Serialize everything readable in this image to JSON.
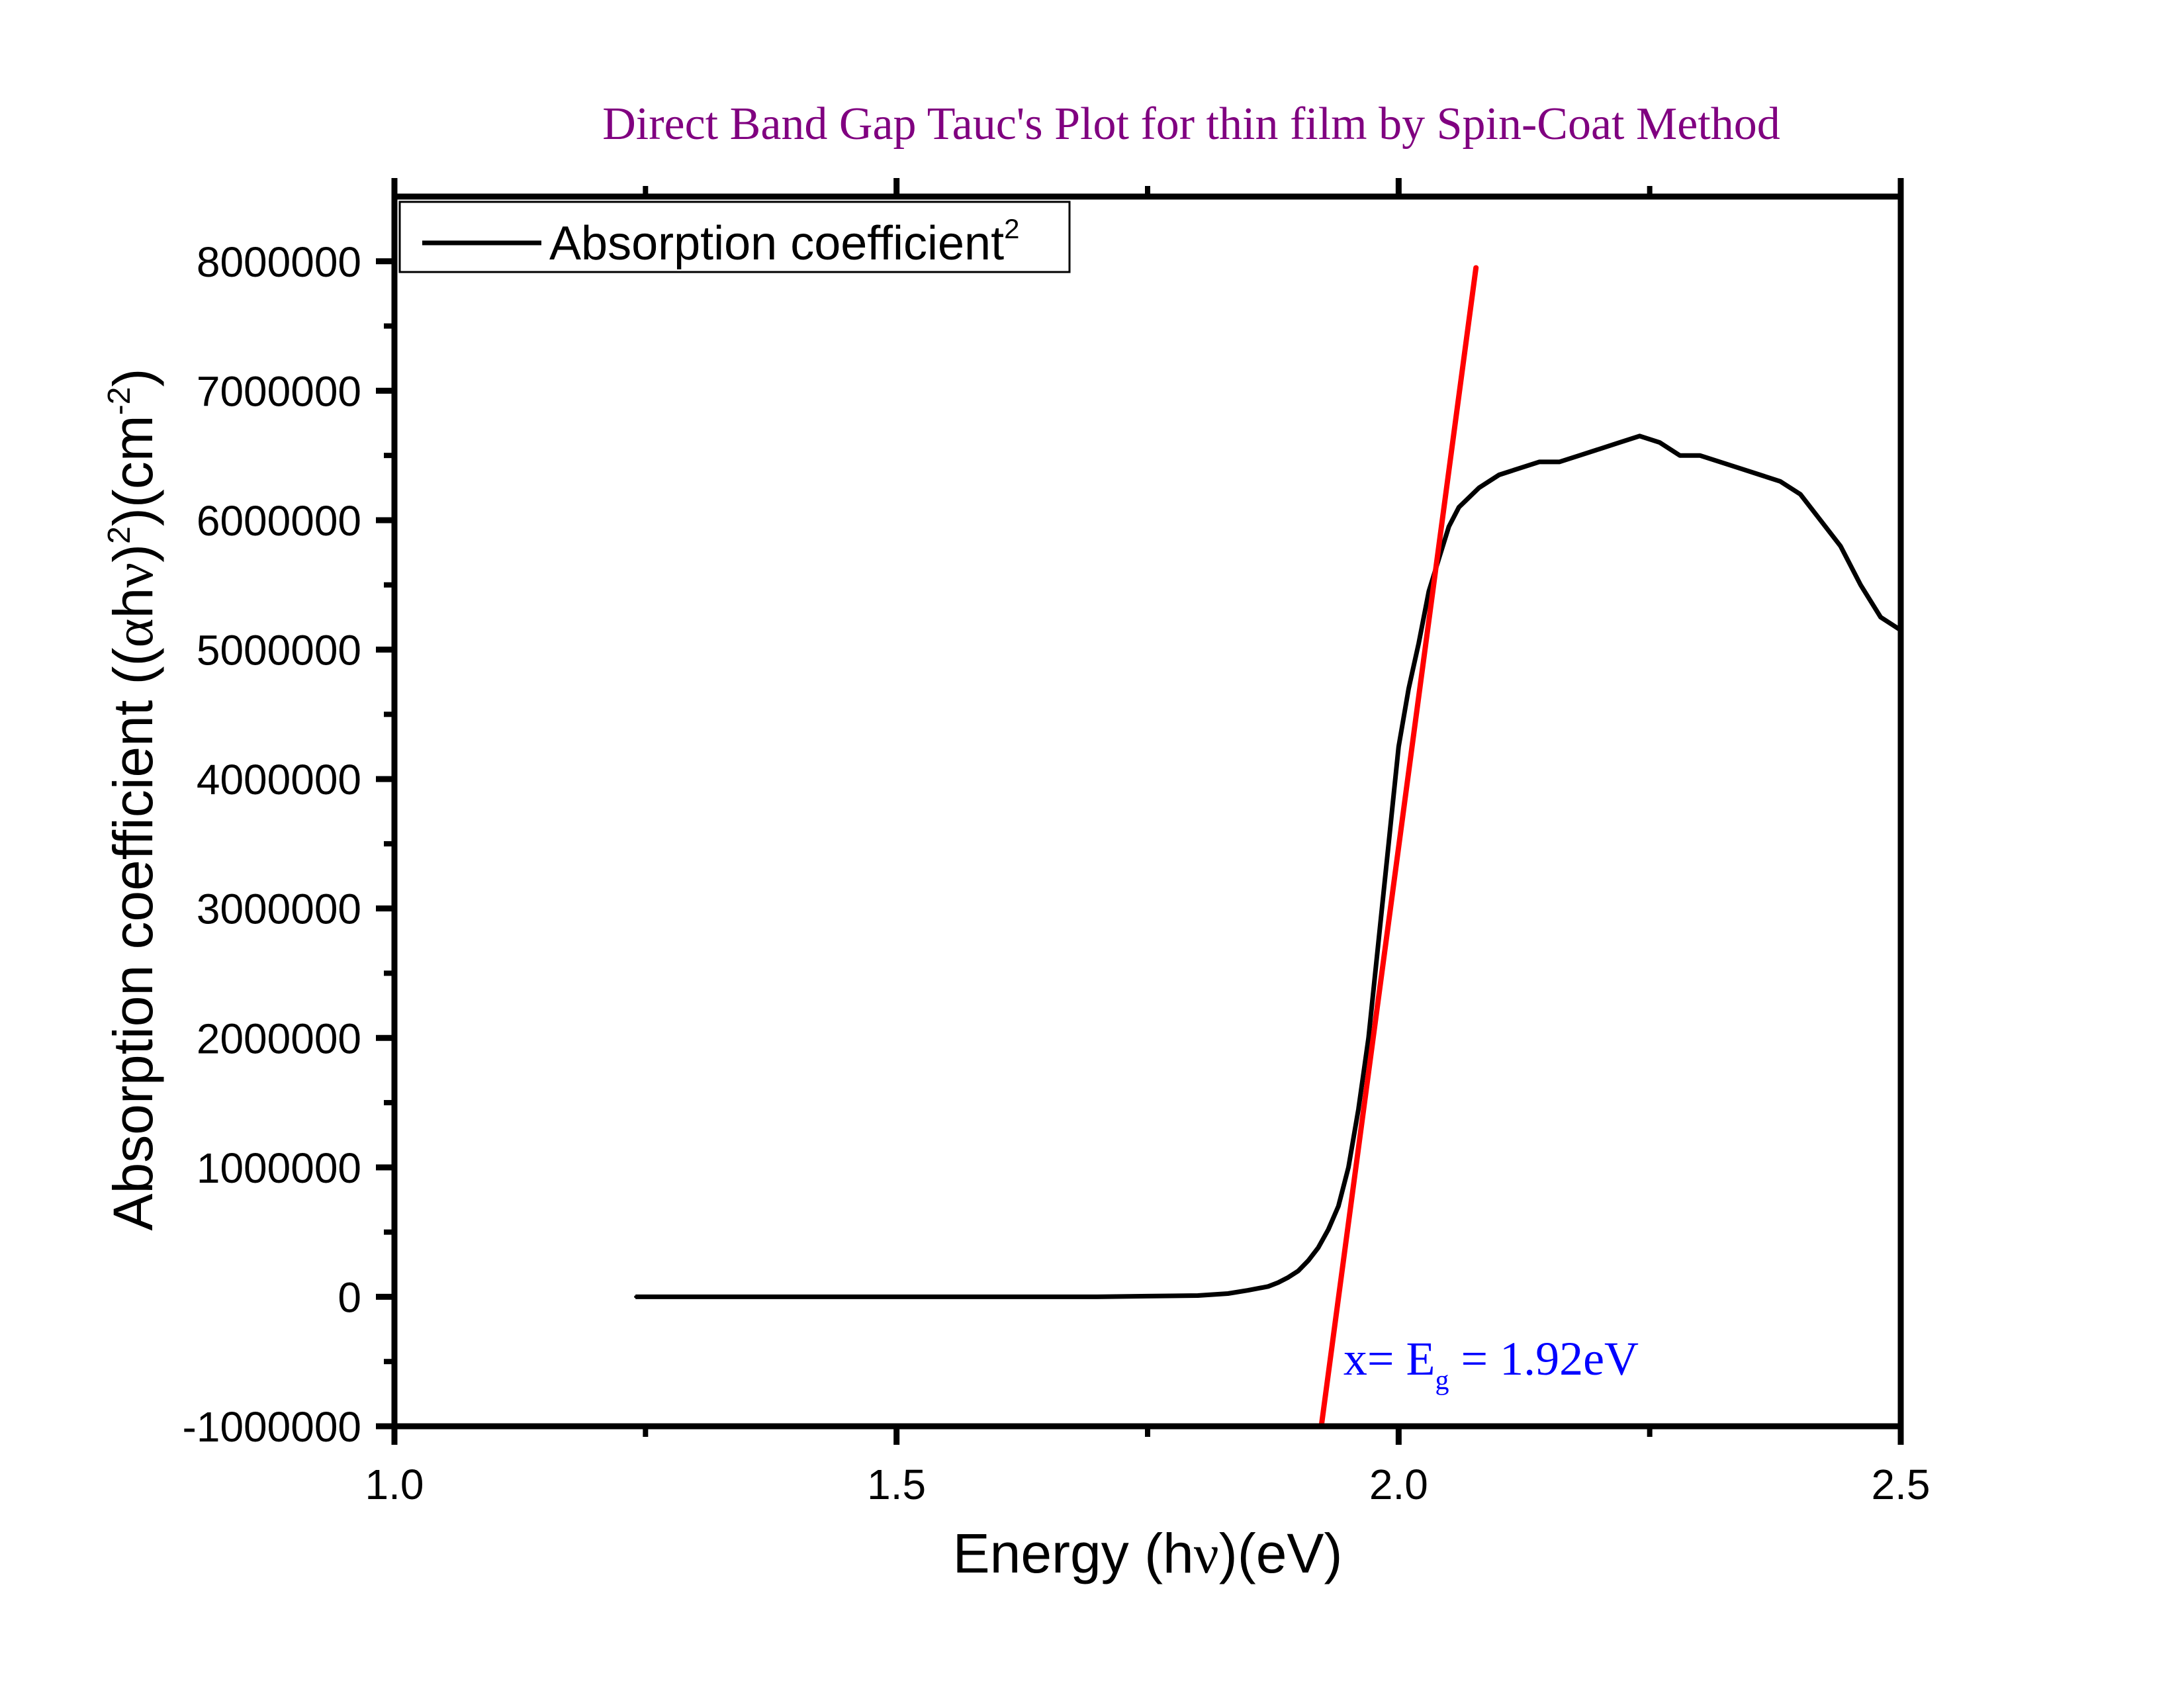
{
  "chart_data": {
    "type": "line",
    "title": "Direct Band Gap Tauc's Plot for thin film by Spin-Coat Method",
    "xlabel": {
      "text": "Energy (h",
      "nu": "ν",
      "end": ")(eV)"
    },
    "ylabel": {
      "pre": "Absorption coefficient ((",
      "alpha": "α",
      "h": "h",
      "nu": "ν",
      "mid": ")",
      "sup1": "2",
      "mid2": ")(cm",
      "sup2": "-2",
      "end": ")"
    },
    "xlim": [
      1.0,
      2.5
    ],
    "ylim": [
      -1000000,
      8500000
    ],
    "x_major_ticks": [
      1.0,
      1.5,
      2.0,
      2.5
    ],
    "x_tick_labels": [
      "1.0",
      "1.5",
      "2.0",
      "2.5"
    ],
    "x_minor_ticks": [
      1.25,
      1.75,
      2.25
    ],
    "y_major_ticks": [
      -1000000,
      0,
      1000000,
      2000000,
      3000000,
      4000000,
      5000000,
      6000000,
      7000000,
      8000000
    ],
    "y_tick_labels": [
      "-1000000",
      "0",
      "1000000",
      "2000000",
      "3000000",
      "4000000",
      "5000000",
      "6000000",
      "7000000",
      "8000000"
    ],
    "y_minor_ticks": [
      -500000,
      500000,
      1500000,
      2500000,
      3500000,
      4500000,
      5500000,
      6500000,
      7500000
    ],
    "legend": {
      "position": "top-left",
      "label": "Absorption coefficient",
      "sup": "2"
    },
    "series": [
      {
        "name": "Absorption coefficient²",
        "color": "#000000",
        "x": [
          1.24,
          1.3,
          1.4,
          1.5,
          1.6,
          1.7,
          1.75,
          1.8,
          1.83,
          1.85,
          1.87,
          1.88,
          1.89,
          1.9,
          1.91,
          1.92,
          1.93,
          1.94,
          1.95,
          1.96,
          1.97,
          1.98,
          1.99,
          2.0,
          2.01,
          2.02,
          2.03,
          2.04,
          2.05,
          2.06,
          2.08,
          2.1,
          2.12,
          2.14,
          2.16,
          2.18,
          2.2,
          2.22,
          2.24,
          2.26,
          2.28,
          2.3,
          2.32,
          2.34,
          2.36,
          2.38,
          2.4,
          2.42,
          2.44,
          2.46,
          2.48,
          2.5
        ],
        "y": [
          0,
          0,
          0,
          0,
          0,
          0,
          5000,
          10000,
          25000,
          50000,
          80000,
          110000,
          150000,
          200000,
          280000,
          380000,
          520000,
          700000,
          1000000,
          1450000,
          2000000,
          2750000,
          3500000,
          4250000,
          4700000,
          5050000,
          5450000,
          5700000,
          5950000,
          6100000,
          6250000,
          6350000,
          6400000,
          6450000,
          6450000,
          6500000,
          6550000,
          6600000,
          6650000,
          6600000,
          6500000,
          6500000,
          6450000,
          6400000,
          6350000,
          6300000,
          6200000,
          6000000,
          5800000,
          5500000,
          5250000,
          5150000
        ]
      }
    ],
    "fit_line": {
      "color": "#ff0000",
      "x": [
        1.923,
        2.077
      ],
      "y": [
        -1000000,
        7950000
      ]
    },
    "annotation": {
      "text_pre": "x= E",
      "sub": "g",
      "text_post": " = 1.92eV",
      "color": "#0000ff",
      "x": 1.945,
      "y": -600000
    },
    "colors": {
      "title": "#800080",
      "axes": "#000000",
      "series": "#000000",
      "fit": "#ff0000",
      "annotation": "#0000ff"
    }
  }
}
